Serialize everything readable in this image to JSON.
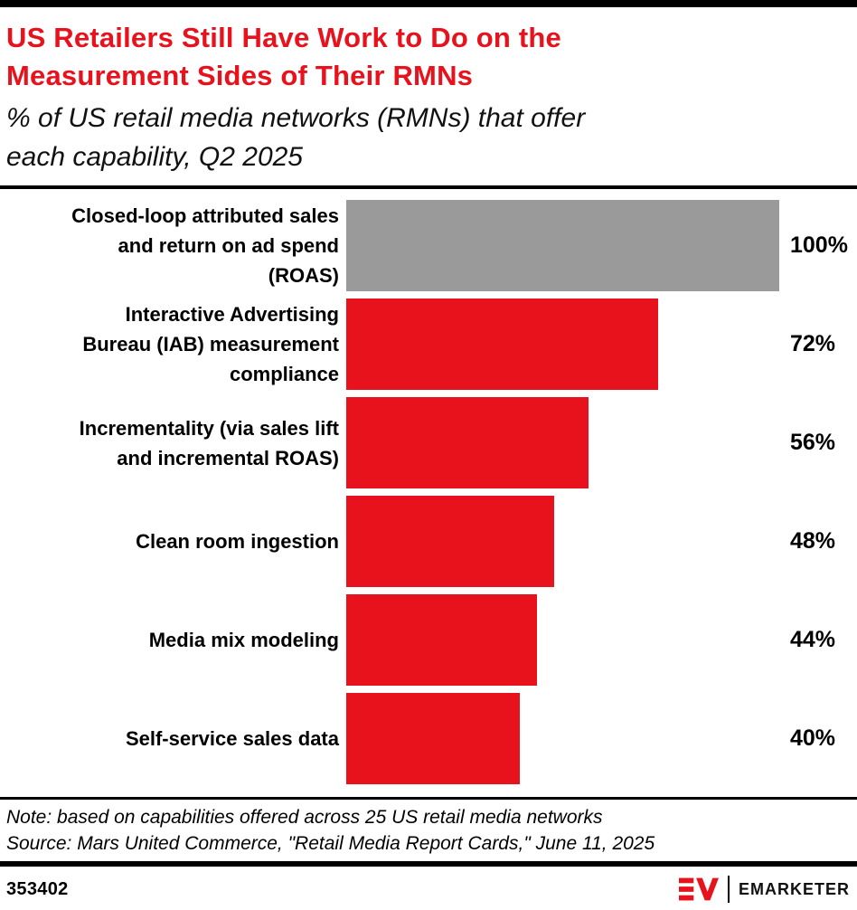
{
  "page": {
    "header": {
      "title": "US Retailers Still Have Work to Do on the\nMeasurement Sides of Their RMNs",
      "subtitle": "% of US retail media networks (RMNs) that offer\neach capability, Q2 2025"
    },
    "footer": {
      "note": "Note: based on capabilities offered across 25 US retail media networks",
      "source": "Source: Mars United Commerce, \"Retail Media Report Cards,\" June 11, 2025",
      "chart_id": "353402",
      "brand_name": "EMARKETER"
    },
    "colors": {
      "accent_red": "#e8121d",
      "bar_gray": "#9a9a9a",
      "rule_black": "#000000"
    }
  },
  "chart_data": {
    "type": "bar",
    "orientation": "horizontal",
    "title": "US Retailers Still Have Work to Do on the Measurement Sides of Their RMNs",
    "subtitle": "% of US retail media networks (RMNs) that offer each capability, Q2 2025",
    "unit": "%",
    "xlim": [
      0,
      100
    ],
    "grid": false,
    "legend": false,
    "categories": [
      "Closed-loop attributed sales and return on ad spend (ROAS)",
      "Interactive Advertising Bureau (IAB) measurement compliance",
      "Incrementality (via sales lift and incremental ROAS)",
      "Clean room ingestion",
      "Media mix modeling",
      "Self-service sales data"
    ],
    "category_display": [
      "Closed-loop attributed sales\nand return on ad spend\n(ROAS)",
      "Interactive Advertising\nBureau (IAB) measurement\ncompliance",
      "Incrementality (via sales lift\nand incremental ROAS)",
      "Clean room ingestion",
      "Media mix modeling",
      "Self-service sales data"
    ],
    "values": [
      100,
      72,
      56,
      48,
      44,
      40
    ],
    "value_labels": [
      "100%",
      "72%",
      "56%",
      "48%",
      "44%",
      "40%"
    ],
    "bar_colors": [
      "#9a9a9a",
      "#e8121d",
      "#e8121d",
      "#e8121d",
      "#e8121d",
      "#e8121d"
    ]
  }
}
